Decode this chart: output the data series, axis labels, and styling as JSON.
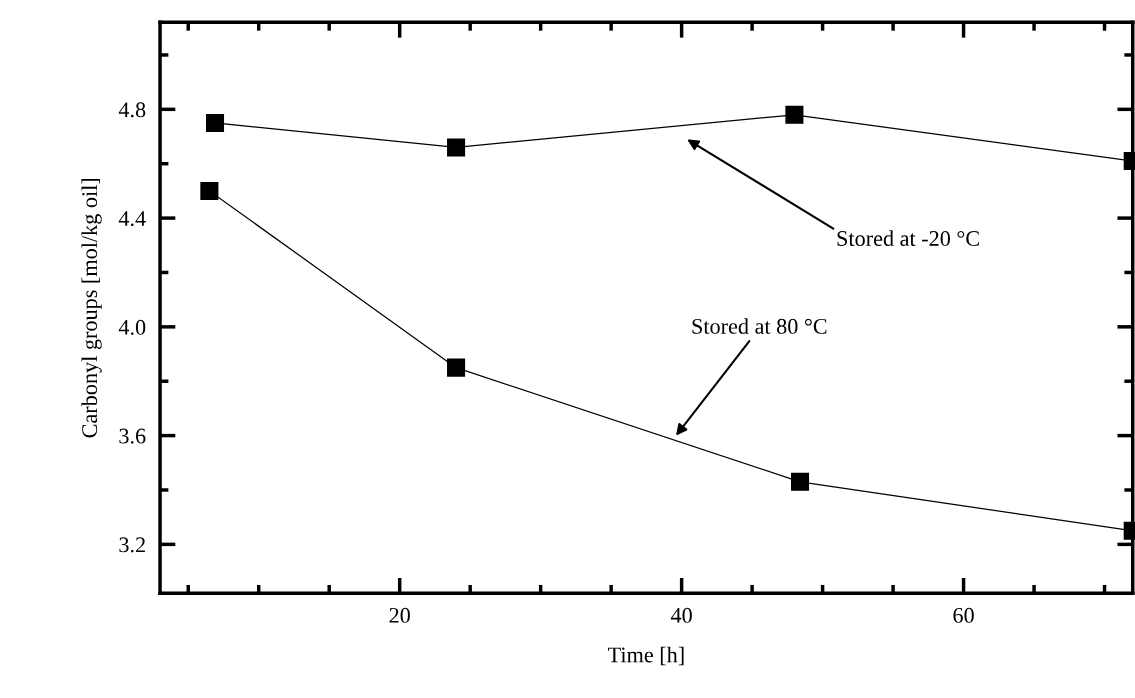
{
  "chart_data": {
    "type": "line",
    "xlabel": "Time [h]",
    "ylabel": "Carbonyl groups [mol/kg oil]",
    "xlim": [
      3,
      72
    ],
    "xticks": [
      20,
      40,
      60
    ],
    "ylim": [
      3.02,
      5.12
    ],
    "yticks": [
      3.2,
      3.6,
      {
        "value": 4,
        "label": "4.0"
      },
      4.4,
      4.8
    ],
    "marker": "square",
    "line_style": "solid",
    "grid": false,
    "legend": false,
    "series": [
      {
        "color": "#000000",
        "x": [
          6.9,
          24,
          48,
          72
        ],
        "values": [
          4.75,
          4.66,
          4.78,
          4.61
        ]
      },
      {
        "color": "#000000",
        "x": [
          6.5,
          24,
          48.4,
          72
        ],
        "values": [
          4.5,
          3.85,
          3.43,
          3.25
        ]
      }
    ],
    "annotations": [
      "Stored at -20 °C",
      {
        "text": "Stored at 80 °C",
        "x": 39.6,
        "y": 3.6
      }
    ]
  }
}
